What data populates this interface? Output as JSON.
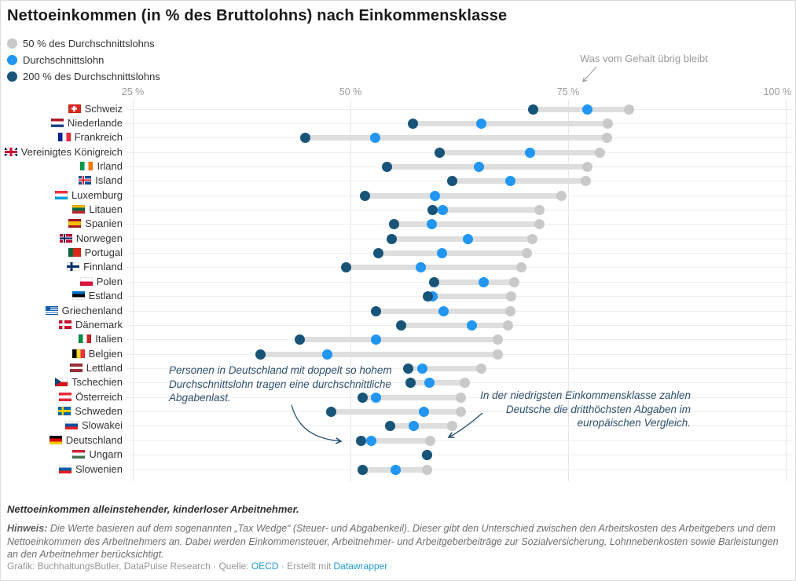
{
  "title": "Nettoeinkommen (in % des Bruttolohns) nach Einkommensklasse",
  "legend": {
    "items": [
      {
        "label": "50 % des Durchschnittslohns",
        "key": "low_wage"
      },
      {
        "label": "Durchschnittslohn",
        "key": "avg_wage"
      },
      {
        "label": "200 % des Durchschnittslohns",
        "key": "high_wage"
      }
    ]
  },
  "axis_annotation": "Was vom Gehalt übrig bleibt",
  "chart_data": {
    "type": "scatter",
    "subtype": "dot-range-plot",
    "x_axis": {
      "ticks": [
        {
          "label": "25 %",
          "value": 25
        },
        {
          "label": "50 %",
          "value": 50
        },
        {
          "label": "75 %",
          "value": 75
        },
        {
          "label": "100 %",
          "value": 100
        }
      ],
      "min": 25,
      "max": 100,
      "grid": true
    },
    "series_labels": {
      "low_wage": "50 % des Durchschnittslohns",
      "avg_wage": "Durchschnittslohn",
      "high_wage": "200 % des Durchschnittslohns"
    },
    "unit": "% des Bruttolohns",
    "countries": [
      {
        "name": "Schweiz",
        "flag": "ch",
        "low_wage": 82.0,
        "avg_wage": 77.2,
        "high_wage": 71.0
      },
      {
        "name": "Niederlande",
        "flag": "nl",
        "low_wage": 79.6,
        "avg_wage": 65.0,
        "high_wage": 57.2
      },
      {
        "name": "Frankreich",
        "flag": "fr",
        "low_wage": 79.5,
        "avg_wage": 52.8,
        "high_wage": 44.8
      },
      {
        "name": "Vereinigtes Königreich",
        "flag": "gb",
        "low_wage": 78.7,
        "avg_wage": 70.6,
        "high_wage": 60.2
      },
      {
        "name": "Irland",
        "flag": "ie",
        "low_wage": 77.2,
        "avg_wage": 64.8,
        "high_wage": 54.2
      },
      {
        "name": "Island",
        "flag": "is",
        "low_wage": 77.0,
        "avg_wage": 68.4,
        "high_wage": 61.7
      },
      {
        "name": "Luxemburg",
        "flag": "lu",
        "low_wage": 74.2,
        "avg_wage": 59.7,
        "high_wage": 51.7
      },
      {
        "name": "Litauen",
        "flag": "lt",
        "low_wage": 71.7,
        "avg_wage": 60.6,
        "high_wage": 59.4
      },
      {
        "name": "Spanien",
        "flag": "es",
        "low_wage": 71.7,
        "avg_wage": 59.3,
        "high_wage": 55.0
      },
      {
        "name": "Norwegen",
        "flag": "no",
        "low_wage": 70.9,
        "avg_wage": 63.5,
        "high_wage": 54.7
      },
      {
        "name": "Portugal",
        "flag": "pt",
        "low_wage": 70.3,
        "avg_wage": 60.5,
        "high_wage": 53.2
      },
      {
        "name": "Finnland",
        "flag": "fi",
        "low_wage": 69.6,
        "avg_wage": 58.1,
        "high_wage": 49.5
      },
      {
        "name": "Polen",
        "flag": "pl",
        "low_wage": 68.8,
        "avg_wage": 65.3,
        "high_wage": 59.6
      },
      {
        "name": "Estland",
        "flag": "ee",
        "low_wage": 68.5,
        "avg_wage": 59.4,
        "high_wage": 58.9
      },
      {
        "name": "Griechenland",
        "flag": "gr",
        "low_wage": 68.4,
        "avg_wage": 60.7,
        "high_wage": 52.9
      },
      {
        "name": "Dänemark",
        "flag": "dk",
        "low_wage": 68.1,
        "avg_wage": 63.9,
        "high_wage": 55.8
      },
      {
        "name": "Italien",
        "flag": "it",
        "low_wage": 66.9,
        "avg_wage": 52.9,
        "high_wage": 44.2
      },
      {
        "name": "Belgien",
        "flag": "be",
        "low_wage": 66.9,
        "avg_wage": 47.3,
        "high_wage": 39.7
      },
      {
        "name": "Lettland",
        "flag": "lv",
        "low_wage": 65.0,
        "avg_wage": 58.3,
        "high_wage": 56.6
      },
      {
        "name": "Tschechien",
        "flag": "cz",
        "low_wage": 63.1,
        "avg_wage": 59.1,
        "high_wage": 56.9
      },
      {
        "name": "Österreich",
        "flag": "at",
        "low_wage": 62.7,
        "avg_wage": 52.9,
        "high_wage": 51.4
      },
      {
        "name": "Schweden",
        "flag": "se",
        "low_wage": 62.7,
        "avg_wage": 58.4,
        "high_wage": 47.8
      },
      {
        "name": "Slowakei",
        "flag": "sk",
        "low_wage": 61.7,
        "avg_wage": 57.3,
        "high_wage": 54.6
      },
      {
        "name": "Deutschland",
        "flag": "de",
        "low_wage": 59.2,
        "avg_wage": 52.4,
        "high_wage": 51.2
      },
      {
        "name": "Ungarn",
        "flag": "hu",
        "low_wage": 58.8,
        "avg_wage": 58.8,
        "high_wage": 58.8
      },
      {
        "name": "Slowenien",
        "flag": "si",
        "low_wage": 58.8,
        "avg_wage": 55.2,
        "high_wage": 51.4
      }
    ]
  },
  "annotations": {
    "left": "Personen in Deutschland mit doppelt so hohem\nDurchschnittslohn tragen eine durchschnittliche\nAbgabenlast.",
    "right": "In der niedrigsten Einkommensklasse zahlen\nDeutsche die dritthöchsten Abgaben im\neuropäischen Vergleich."
  },
  "footer": {
    "intro": "Nettoeinkommen alleinstehender, kinderloser Arbeitnehmer.",
    "note_label": "Hinweis:",
    "note_body": " Die Werte basieren auf dem sogenannten „Tax Wedge“ (Steuer- und Abgabenkeil). Dieser gibt den Unterschied zwischen den Arbeitskosten des Arbeitgebers und dem Nettoeinkommen des Arbeitnehmers an. Dabei werden Einkommensteuer, Arbeitnehmer- und Arbeitgeberbeiträge zur Sozialversicherung, Lohnnebenkosten sowie Barleistungen an den Arbeitnehmer berücksichtigt.",
    "credits_prefix": "Grafik: BuchhaltungsButler, DataPulse Research · Quelle: ",
    "credits_source": "OECD",
    "credits_mid": " · Erstellt mit ",
    "credits_tool": "Datawrapper"
  },
  "colors": {
    "dot_low_wage": "#c9c9c9",
    "dot_avg_wage": "#2196f3",
    "dot_high_wage": "#175478",
    "range_bar": "#dedede",
    "annotation_text": "#2d4f6e",
    "annotation_arrow": "#1f4e6e",
    "axis_text": "#9b9b9b",
    "link": "#1d9bd0"
  }
}
